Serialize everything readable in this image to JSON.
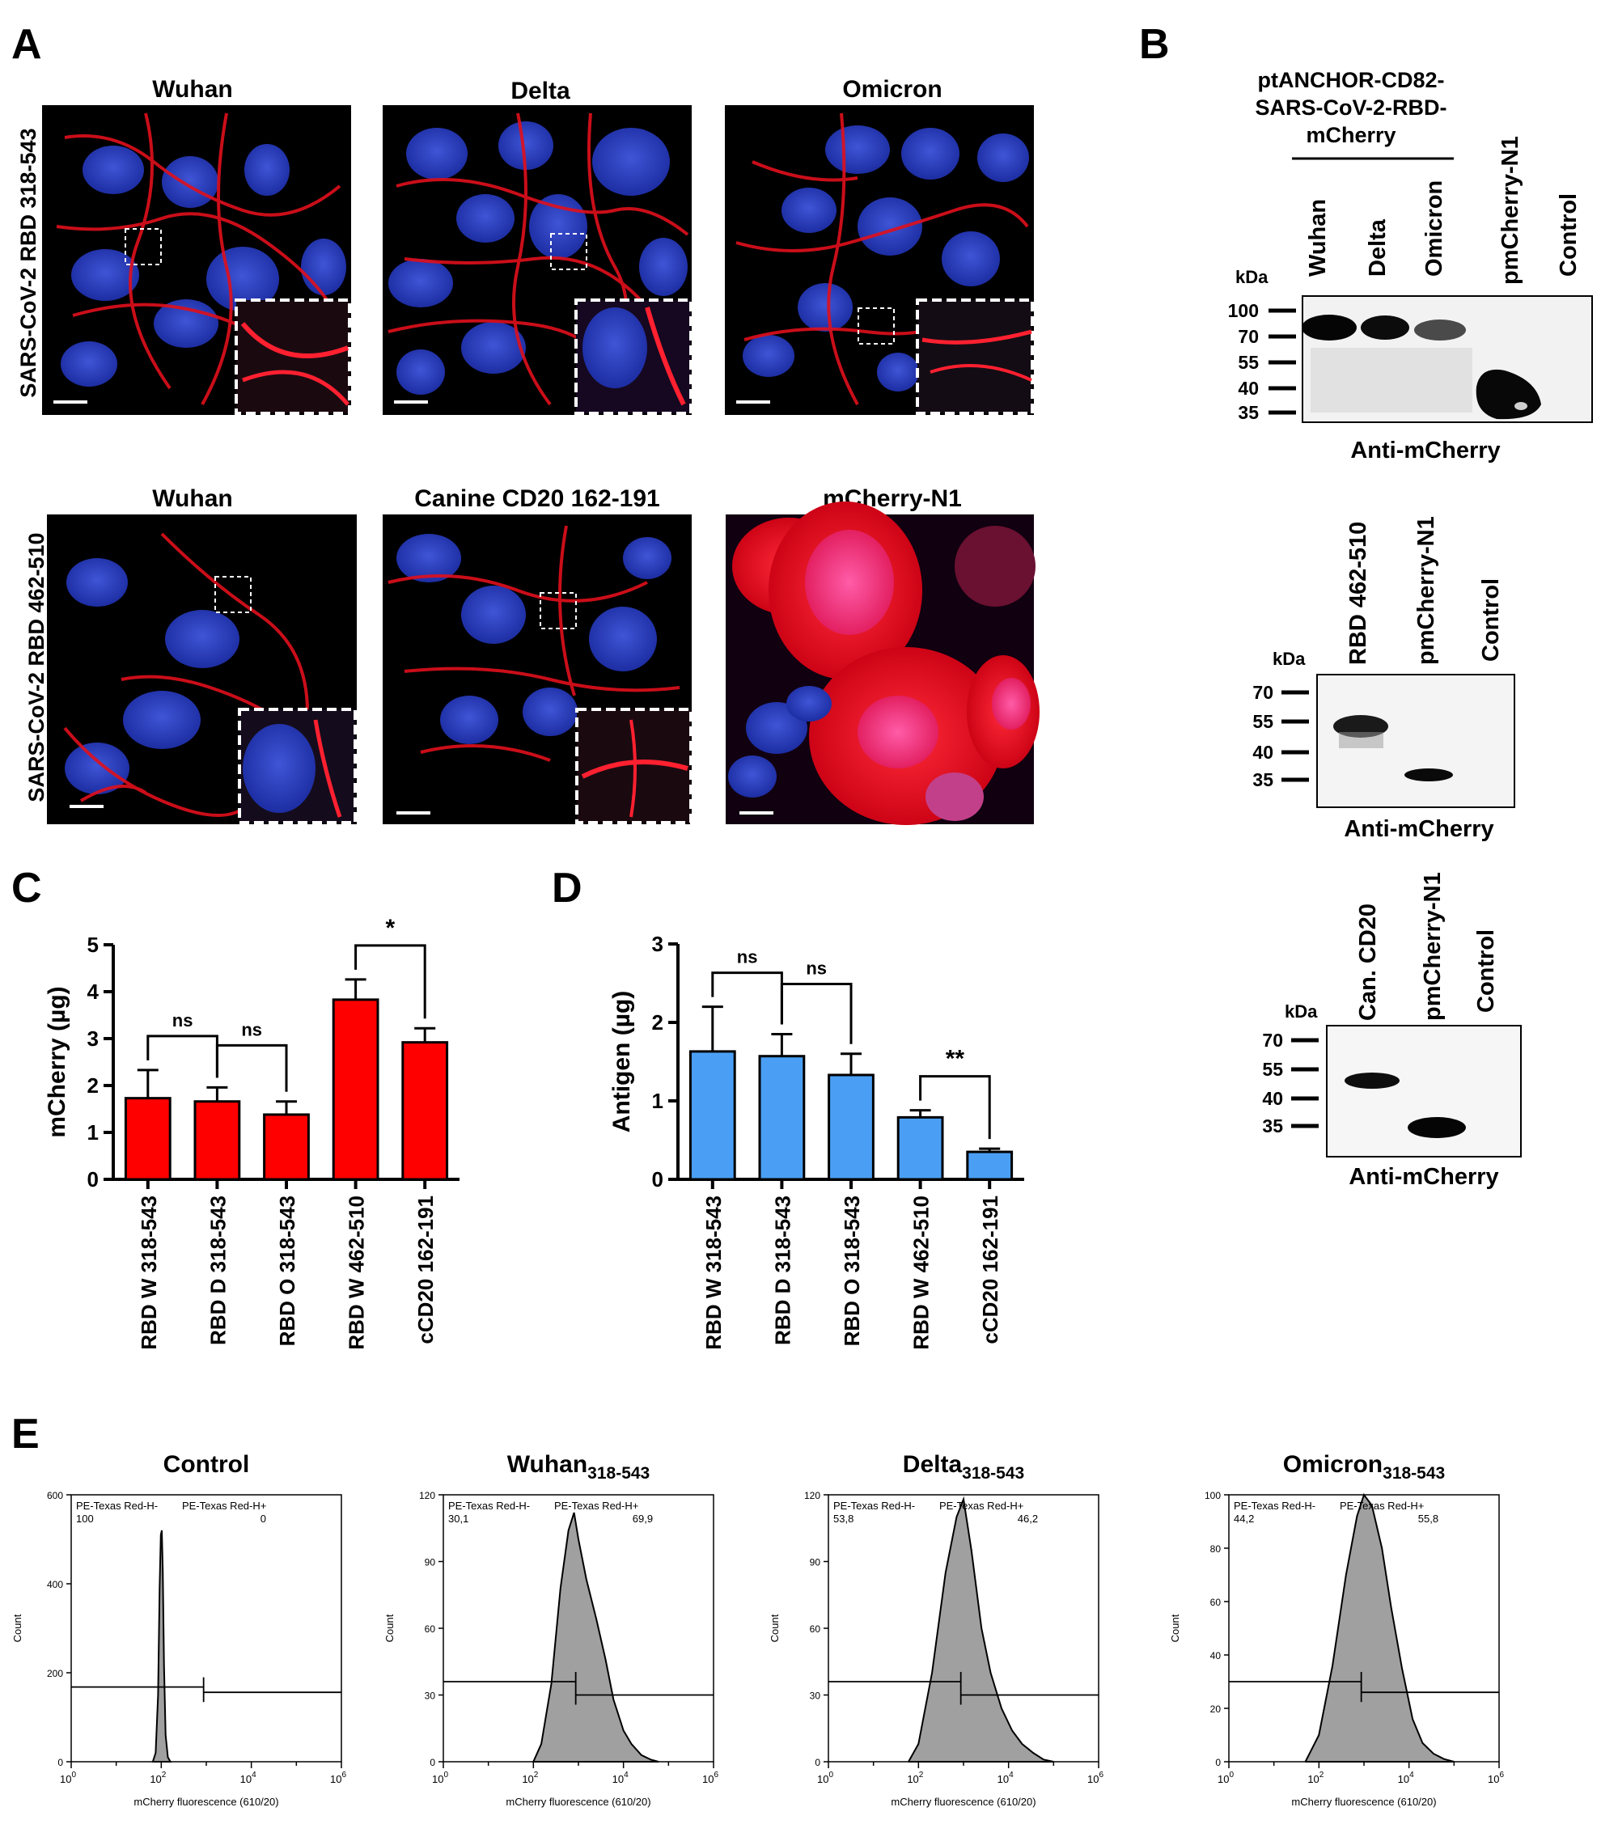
{
  "panel_labels": {
    "A": "A",
    "B": "B",
    "C": "C",
    "D": "D",
    "E": "E"
  },
  "panelA": {
    "row1": {
      "ylabel": "SARS-CoV-2 RBD 318-543",
      "titles": [
        "Wuhan",
        "Delta",
        "Omicron"
      ]
    },
    "row2": {
      "ylabel": "SARS-CoV-2 RBD 462-510",
      "titles": [
        "Wuhan",
        "Canine CD20 162-191",
        "mCherry-N1"
      ]
    }
  },
  "panelB": {
    "blot1": {
      "construct_line1": "ptANCHOR-CD82-",
      "construct_line2": "SARS-CoV-2-RBD-",
      "construct_line3": "mCherry",
      "lanes": [
        "Wuhan",
        "Delta",
        "Omicron",
        "pmCherry-N1",
        "Control"
      ],
      "kda_label": "kDa",
      "markers": [
        "100",
        "70",
        "55",
        "40",
        "35"
      ],
      "antibody": "Anti-mCherry"
    },
    "blot2": {
      "lanes": [
        "RBD 462-510",
        "pmCherry-N1",
        "Control"
      ],
      "kda_label": "kDa",
      "markers": [
        "70",
        "55",
        "40",
        "35"
      ],
      "antibody": "Anti-mCherry"
    },
    "blot3": {
      "lanes": [
        "Can. CD20",
        "pmCherry-N1",
        "Control"
      ],
      "kda_label": "kDa",
      "markers": [
        "70",
        "55",
        "40",
        "35"
      ],
      "antibody": "Anti-mCherry"
    }
  },
  "chart_data": [
    {
      "id": "C",
      "type": "bar",
      "ylabel": "mCherry (µg)",
      "ylim": [
        0,
        5
      ],
      "yticks": [
        "0",
        "1",
        "2",
        "3",
        "4",
        "5"
      ],
      "categories": [
        "RBD W 318-543",
        "RBD D 318-543",
        "RBD O 318-543",
        "RBD W 462-510",
        "cCD20 162-191"
      ],
      "values": [
        1.73,
        1.66,
        1.38,
        3.83,
        2.92
      ],
      "errors": [
        0.6,
        0.3,
        0.28,
        0.43,
        0.3
      ],
      "color": "#ff0000",
      "significance": [
        {
          "from": 0,
          "to": 1,
          "label": "ns"
        },
        {
          "from": 1,
          "to": 2,
          "label": "ns"
        },
        {
          "from": 3,
          "to": 4,
          "label": "*"
        }
      ]
    },
    {
      "id": "D",
      "type": "bar",
      "ylabel": "Antigen (µg)",
      "ylim": [
        0,
        3
      ],
      "yticks": [
        "0",
        "1",
        "2",
        "3"
      ],
      "categories": [
        "RBD W 318-543",
        "RBD D 318-543",
        "RBD O 318-543",
        "RBD W 462-510",
        "cCD20 162-191"
      ],
      "values": [
        1.63,
        1.57,
        1.33,
        0.79,
        0.35
      ],
      "errors": [
        0.57,
        0.28,
        0.27,
        0.09,
        0.04
      ],
      "color": "#4a9ff5",
      "significance": [
        {
          "from": 0,
          "to": 1,
          "label": "ns"
        },
        {
          "from": 1,
          "to": 2,
          "label": "ns"
        },
        {
          "from": 3,
          "to": 4,
          "label": "**"
        }
      ]
    },
    {
      "id": "E1",
      "type": "area",
      "title_main": "Control",
      "title_sub": "",
      "xlabel": "mCherry fluorescence (610/20)",
      "ylabel": "Count",
      "xscale": "log",
      "xlim": [
        1,
        1000000
      ],
      "ylim": [
        0,
        600
      ],
      "yticks": [
        "0",
        "200",
        "400",
        "600"
      ],
      "gate_neg_label": "PE-Texas Red-H-",
      "gate_neg_value": "100",
      "gate_pos_label": "PE-Texas Red-H+",
      "gate_pos_value": "0",
      "x": [
        65,
        75,
        85,
        92,
        98,
        103,
        108,
        115,
        125,
        140,
        160
      ],
      "y": [
        0,
        20,
        150,
        390,
        510,
        520,
        430,
        220,
        60,
        10,
        0
      ]
    },
    {
      "id": "E2",
      "type": "area",
      "title_main": "Wuhan",
      "title_sub": "318-543",
      "xlabel": "mCherry fluorescence (610/20)",
      "ylabel": "Count",
      "xscale": "log",
      "xlim": [
        1,
        1000000
      ],
      "ylim": [
        0,
        120
      ],
      "yticks": [
        "0",
        "30",
        "60",
        "90",
        "120"
      ],
      "gate_neg_label": "PE-Texas Red-H-",
      "gate_neg_value": "30,1",
      "gate_pos_label": "PE-Texas Red-H+",
      "gate_pos_value": "69,9",
      "x": [
        100,
        150,
        250,
        400,
        600,
        800,
        1000,
        1500,
        2500,
        4000,
        6000,
        10000,
        15000,
        25000,
        40000,
        60000
      ],
      "y": [
        0,
        8,
        35,
        78,
        104,
        112,
        100,
        82,
        64,
        46,
        28,
        14,
        8,
        3,
        1,
        0
      ]
    },
    {
      "id": "E3",
      "type": "area",
      "title_main": "Delta",
      "title_sub": "318-543",
      "xlabel": "mCherry fluorescence (610/20)",
      "ylabel": "Count",
      "xscale": "log",
      "xlim": [
        1,
        1000000
      ],
      "ylim": [
        0,
        120
      ],
      "yticks": [
        "0",
        "30",
        "60",
        "90",
        "120"
      ],
      "gate_neg_label": "PE-Texas Red-H-",
      "gate_neg_value": "53,8",
      "gate_pos_label": "PE-Texas Red-H+",
      "gate_pos_value": "46,2",
      "x": [
        60,
        100,
        200,
        400,
        700,
        1000,
        1500,
        2500,
        4000,
        7000,
        12000,
        20000,
        35000,
        60000,
        100000
      ],
      "y": [
        0,
        8,
        40,
        85,
        110,
        118,
        95,
        60,
        40,
        24,
        14,
        8,
        4,
        1,
        0
      ]
    },
    {
      "id": "E4",
      "type": "area",
      "title_main": "Omicron",
      "title_sub": "318-543",
      "xlabel": "mCherry fluorescence (610/20)",
      "ylabel": "Count",
      "xscale": "log",
      "xlim": [
        1,
        1000000
      ],
      "ylim": [
        0,
        100
      ],
      "yticks": [
        "0",
        "20",
        "40",
        "60",
        "80",
        "100"
      ],
      "gate_neg_label": "PE-Texas Red-H-",
      "gate_neg_value": "44,2",
      "gate_pos_label": "PE-Texas Red-H+",
      "gate_pos_value": "55,8",
      "x": [
        50,
        100,
        200,
        400,
        700,
        1000,
        1500,
        2500,
        4000,
        7000,
        12000,
        20000,
        35000,
        60000,
        100000
      ],
      "y": [
        0,
        10,
        36,
        70,
        92,
        100,
        96,
        80,
        58,
        35,
        16,
        7,
        3,
        1,
        0
      ]
    }
  ]
}
